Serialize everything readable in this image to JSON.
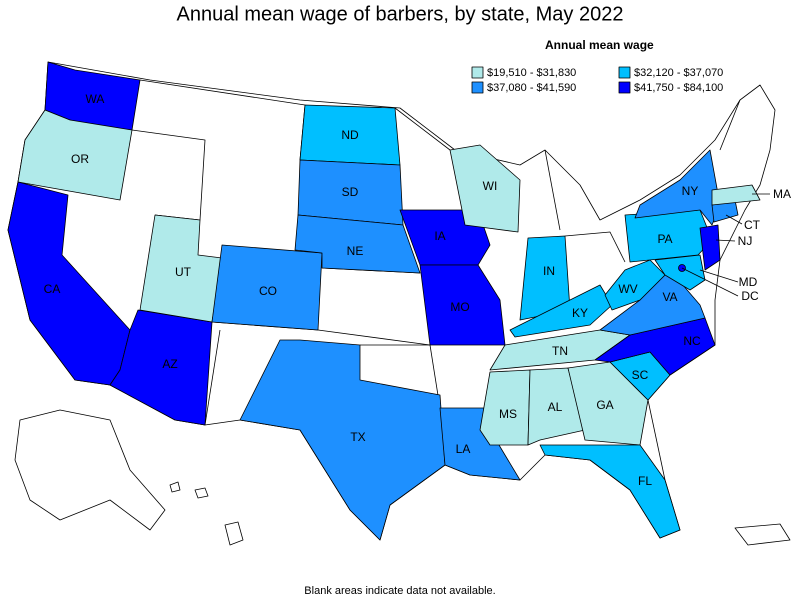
{
  "title": "Annual mean wage of barbers, by state, May 2022",
  "legend": {
    "title": "Annual mean wage",
    "items": [
      {
        "label": "$19,510 - $31,830",
        "color": "#b0eaea"
      },
      {
        "label": "$32,120 - $37,070",
        "color": "#00bfff"
      },
      {
        "label": "$37,080 - $41,590",
        "color": "#1e90ff"
      },
      {
        "label": "$41,750 - $84,100",
        "color": "#0000ff"
      }
    ]
  },
  "states": [
    {
      "label": "WA",
      "class": 3
    },
    {
      "label": "OR",
      "class": 0
    },
    {
      "label": "CA",
      "class": 3
    },
    {
      "label": "AZ",
      "class": 3
    },
    {
      "label": "UT",
      "class": 0
    },
    {
      "label": "CO",
      "class": 2
    },
    {
      "label": "ND",
      "class": 1
    },
    {
      "label": "SD",
      "class": 2
    },
    {
      "label": "NE",
      "class": 2
    },
    {
      "label": "TX",
      "class": 2
    },
    {
      "label": "IA",
      "class": 3
    },
    {
      "label": "MO",
      "class": 3
    },
    {
      "label": "LA",
      "class": 2
    },
    {
      "label": "WI",
      "class": 0
    },
    {
      "label": "IN",
      "class": 1
    },
    {
      "label": "KY",
      "class": 1
    },
    {
      "label": "TN",
      "class": 0
    },
    {
      "label": "MS",
      "class": 0
    },
    {
      "label": "AL",
      "class": 0
    },
    {
      "label": "GA",
      "class": 0
    },
    {
      "label": "SC",
      "class": 1
    },
    {
      "label": "FL",
      "class": 1
    },
    {
      "label": "NC",
      "class": 3
    },
    {
      "label": "VA",
      "class": 2
    },
    {
      "label": "WV",
      "class": 1
    },
    {
      "label": "PA",
      "class": 1
    },
    {
      "label": "NY",
      "class": 2
    },
    {
      "label": "NJ",
      "class": 3
    },
    {
      "label": "CT",
      "class": 2
    },
    {
      "label": "MA",
      "class": 0
    },
    {
      "label": "MD",
      "class": 1
    },
    {
      "label": "DC",
      "class": 3
    }
  ],
  "footnote": "Blank areas indicate data not available."
}
